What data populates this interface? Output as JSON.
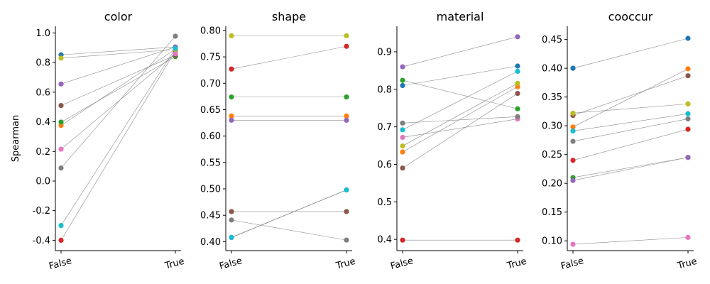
{
  "colors": [
    "#1f77b4",
    "#ff7f0e",
    "#2ca02c",
    "#d62728",
    "#9467bd",
    "#8c564b",
    "#e377c2",
    "#7f7f7f",
    "#bcbd22",
    "#17becf"
  ],
  "chart_data": [
    {
      "type": "slope",
      "title": "color",
      "ylabel": "Spearman",
      "categories": [
        "False",
        "True"
      ],
      "ylim": [
        -0.47,
        1.045
      ],
      "yticks": [
        "-0.4",
        "-0.2",
        "0.0",
        "0.2",
        "0.4",
        "0.6",
        "0.8",
        "1.0"
      ],
      "pairs": [
        [
          0.852,
          0.905
        ],
        [
          0.375,
          0.89
        ],
        [
          0.398,
          0.84
        ],
        [
          -0.4,
          0.88
        ],
        [
          0.655,
          0.905
        ],
        [
          0.51,
          0.85
        ],
        [
          0.215,
          0.86
        ],
        [
          0.088,
          0.978
        ],
        [
          0.83,
          0.888
        ],
        [
          -0.3,
          0.895
        ]
      ]
    },
    {
      "type": "slope",
      "title": "shape",
      "ylabel": "",
      "categories": [
        "False",
        "True"
      ],
      "ylim": [
        0.383,
        0.808
      ],
      "yticks": [
        "0.40",
        "0.45",
        "0.50",
        "0.55",
        "0.60",
        "0.65",
        "0.70",
        "0.75",
        "0.80"
      ],
      "pairs": [
        [
          0.408,
          0.498
        ],
        [
          0.638,
          0.638
        ],
        [
          0.674,
          0.674
        ],
        [
          0.727,
          0.77
        ],
        [
          0.63,
          0.63
        ],
        [
          0.457,
          0.457
        ],
        [
          0.408,
          0.498
        ],
        [
          0.441,
          0.403
        ],
        [
          0.79,
          0.79
        ],
        [
          0.408,
          0.498
        ]
      ]
    },
    {
      "type": "slope",
      "title": "material",
      "ylabel": "",
      "categories": [
        "False",
        "True"
      ],
      "ylim": [
        0.37,
        0.968
      ],
      "yticks": [
        "0.4",
        "0.5",
        "0.6",
        "0.7",
        "0.8",
        "0.9"
      ],
      "pairs": [
        [
          0.81,
          0.862
        ],
        [
          0.633,
          0.807
        ],
        [
          0.824,
          0.748
        ],
        [
          0.398,
          0.398
        ],
        [
          0.86,
          0.94
        ],
        [
          0.59,
          0.789
        ],
        [
          0.672,
          0.721
        ],
        [
          0.71,
          0.727
        ],
        [
          0.649,
          0.816
        ],
        [
          0.692,
          0.848
        ]
      ]
    },
    {
      "type": "slope",
      "title": "cooccur",
      "ylabel": "",
      "categories": [
        "False",
        "True"
      ],
      "ylim": [
        0.083,
        0.473
      ],
      "yticks": [
        "0.10",
        "0.15",
        "0.20",
        "0.25",
        "0.30",
        "0.35",
        "0.40",
        "0.45"
      ],
      "pairs": [
        [
          0.4,
          0.452
        ],
        [
          0.298,
          0.399
        ],
        [
          0.21,
          0.245
        ],
        [
          0.24,
          0.294
        ],
        [
          0.205,
          0.245
        ],
        [
          0.318,
          0.387
        ],
        [
          0.094,
          0.106
        ],
        [
          0.273,
          0.312
        ],
        [
          0.322,
          0.338
        ],
        [
          0.291,
          0.321
        ]
      ]
    }
  ]
}
